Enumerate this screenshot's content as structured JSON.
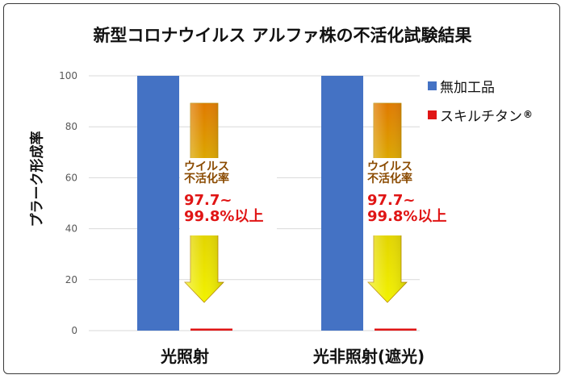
{
  "chart_data": {
    "type": "bar",
    "title": "新型コロナウイルス アルファ株の不活化試験結果",
    "ylabel": "プラーク形成率",
    "xlabel": "",
    "ylim": [
      0,
      100
    ],
    "yticks": [
      0,
      20,
      40,
      60,
      80,
      100
    ],
    "grid": true,
    "legend_position": "right",
    "categories": [
      "光照射",
      "光非照射(遮光)"
    ],
    "series": [
      {
        "name": "無加工品",
        "color": "#4472c4",
        "values": [
          100,
          100
        ]
      },
      {
        "name": "スキルチタン",
        "color": "#e01515",
        "values": [
          0.8,
          0.8
        ]
      }
    ],
    "legend_trademark": "®",
    "annotations": [
      {
        "label_line1": "ウイルス",
        "label_line2": "不活化率",
        "value_line1": "97.7~",
        "value_line2": "99.8%以上"
      },
      {
        "label_line1": "ウイルス",
        "label_line2": "不活化率",
        "value_line1": "97.7~",
        "value_line2": "99.8%以上"
      }
    ]
  }
}
